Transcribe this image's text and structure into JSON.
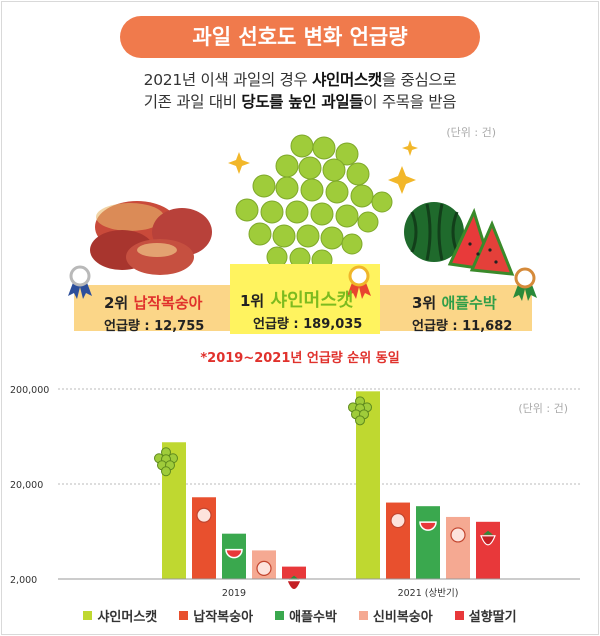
{
  "header": {
    "title": "과일 선호도 변화 언급량",
    "subtitle_line1_pre": "2021년 이색 과일의 경우 ",
    "subtitle_line1_bold": "샤인머스캣",
    "subtitle_line1_post": "을 중심으로",
    "subtitle_line2_pre": "기존 과일 대비 ",
    "subtitle_line2_bold": "당도를 높인 과일들",
    "subtitle_line2_post": "이 주목을 받음",
    "unit": "(단위 : 건)"
  },
  "ranking": [
    {
      "rank": "2위",
      "name": "납작복숭아",
      "value_label": "언급량 : 12,755",
      "name_color": "#e0312c",
      "icon": "flat-peach-icon"
    },
    {
      "rank": "1위",
      "name": "샤인머스캣",
      "value_label": "언급량 : 189,035",
      "name_color": "#7dbb1f",
      "icon": "shine-muscat-grapes-icon"
    },
    {
      "rank": "3위",
      "name": "애플수박",
      "value_label": "언급량 : 11,682",
      "name_color": "#2f9e48",
      "icon": "apple-watermelon-icon"
    }
  ],
  "note": "*2019~2021년 언급량 순위 동일",
  "chart_unit": "(단위 : 건)",
  "colors": {
    "title_pill": "#f07a4c",
    "band": "#fbd688",
    "band_center": "#fff35f"
  },
  "chart_data": {
    "type": "bar",
    "y_scale": "log",
    "ylim": [
      2000,
      200000
    ],
    "yticks": [
      "200,000",
      "20,000",
      "2,000"
    ],
    "ytick_values": [
      200000,
      20000,
      2000
    ],
    "categories": [
      "2019",
      "2021 (상반기)"
    ],
    "series": [
      {
        "name": "샤인머스캣",
        "color": "#bfd830",
        "values": [
          55000,
          189035
        ],
        "icon": "grape-icon"
      },
      {
        "name": "납작복숭아",
        "color": "#e8502e",
        "values": [
          14500,
          12755
        ],
        "icon": "peach-icon"
      },
      {
        "name": "애플수박",
        "color": "#3aa84e",
        "values": [
          6000,
          11682
        ],
        "icon": "watermelon-icon"
      },
      {
        "name": "신비복숭아",
        "color": "#f5a992",
        "values": [
          4000,
          9000
        ],
        "icon": "peach-icon"
      },
      {
        "name": "설향딸기",
        "color": "#e8383a",
        "values": [
          2700,
          8000
        ],
        "icon": "strawberry-icon"
      }
    ],
    "grid": true,
    "legend": "bottom"
  }
}
